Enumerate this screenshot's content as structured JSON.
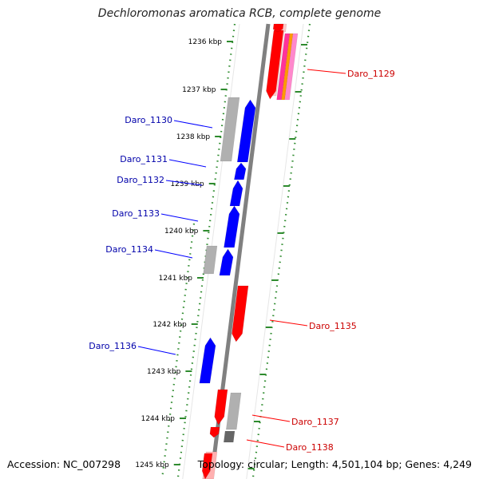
{
  "title": "Dechloromonas aromatica RCB, complete genome",
  "accession": "Accession: NC_007298",
  "topology": "Topology: circular; Length: 4,501,104 bp; Genes: 4,249",
  "colors": {
    "forward_gene": "#ff0000",
    "reverse_gene": "#0000ff",
    "other_feature": "#b0b0b0",
    "tick_mark": "#2e8b2e",
    "backbone": "#808080",
    "forward_label": "#cc0000",
    "reverse_label": "#0000aa"
  },
  "ticks": [
    "1236 kbp",
    "1237 kbp",
    "1238 kbp",
    "1239 kbp",
    "1240 kbp",
    "1241 kbp",
    "1242 kbp",
    "1243 kbp",
    "1244 kbp",
    "1245 kbp"
  ],
  "genes_forward": [
    "Daro_1129",
    "Daro_1135",
    "Daro_1137",
    "Daro_1138"
  ],
  "genes_reverse": [
    "Daro_1130",
    "Daro_1131",
    "Daro_1132",
    "Daro_1133",
    "Daro_1134",
    "Daro_1136"
  ]
}
